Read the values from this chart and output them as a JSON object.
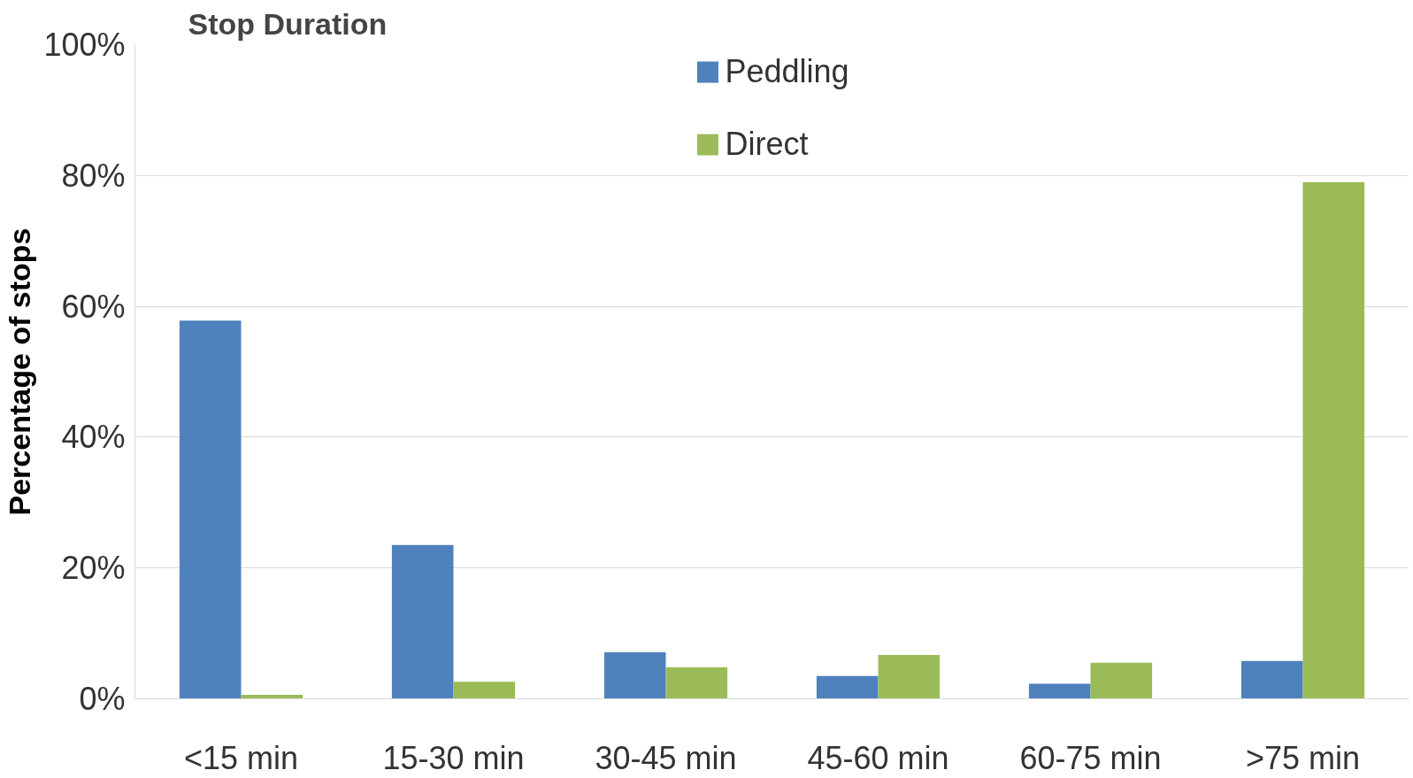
{
  "chart_data": {
    "type": "bar",
    "title": "Stop Duration",
    "ylabel": "Percentage of stops",
    "categories": [
      "<15 min",
      "15-30 min",
      "30-45 min",
      "45-60 min",
      "60-75 min",
      ">75 min"
    ],
    "series": [
      {
        "name": "Peddling",
        "color": "#4f81bd",
        "values": [
          57.8,
          23.5,
          7.1,
          3.5,
          2.3,
          5.8
        ]
      },
      {
        "name": "Direct",
        "color": "#9bbb59",
        "values": [
          0.6,
          2.6,
          4.8,
          6.7,
          5.5,
          79
        ]
      }
    ],
    "ylim": [
      0,
      100
    ],
    "yticks": [
      {
        "value": 0,
        "label": "0%"
      },
      {
        "value": 20,
        "label": "20%"
      },
      {
        "value": 40,
        "label": "40%"
      },
      {
        "value": 60,
        "label": "60%"
      },
      {
        "value": 80,
        "label": "80%"
      },
      {
        "value": 100,
        "label": "100%"
      }
    ],
    "grid": "y",
    "legend": "top"
  }
}
